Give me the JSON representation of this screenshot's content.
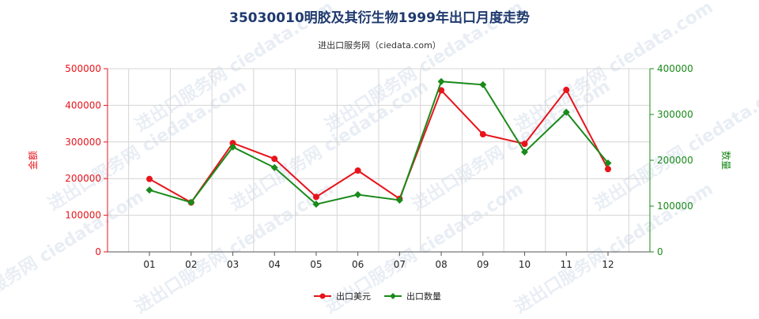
{
  "chart_data": {
    "type": "line",
    "title": "35030010明胶及其衍生物1999年出口月度走势",
    "subtitle": "进出口服务网（ciedata.com）",
    "watermark": "进出口服务网 ciedata.com",
    "categories": [
      "01",
      "02",
      "03",
      "04",
      "05",
      "06",
      "07",
      "08",
      "09",
      "10",
      "11",
      "12"
    ],
    "left_axis": {
      "label": "金额",
      "min": 0,
      "max": 500000,
      "ticks": [
        0,
        100000,
        200000,
        300000,
        400000,
        500000
      ],
      "color": "#e8141b"
    },
    "right_axis": {
      "label": "数量",
      "min": 0,
      "max": 400000,
      "ticks": [
        0,
        100000,
        200000,
        300000,
        400000
      ],
      "color": "#1a8a1a"
    },
    "grid": true,
    "legend_position": "bottom-center",
    "series": [
      {
        "name": "出口美元",
        "axis": "left",
        "color": "#e8141b",
        "values": [
          199000,
          135000,
          297000,
          254000,
          150000,
          222000,
          145000,
          441000,
          321000,
          295000,
          442000,
          226000
        ]
      },
      {
        "name": "出口数量",
        "axis": "right",
        "color": "#1a8a1a",
        "values": [
          135000,
          108000,
          229000,
          184000,
          104000,
          125000,
          113000,
          372000,
          365000,
          218000,
          305000,
          194000
        ]
      }
    ]
  }
}
